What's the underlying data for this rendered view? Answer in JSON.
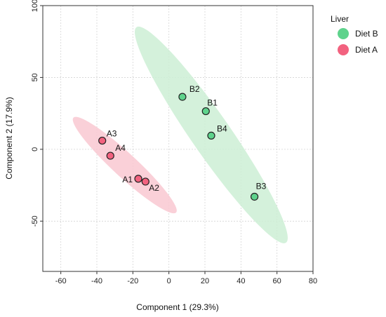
{
  "chart_data": {
    "type": "scatter",
    "title": "",
    "xlabel": "Component 1 (29.3%)",
    "ylabel": "Component 2 (17.9%)",
    "xlim": [
      -70,
      80
    ],
    "ylim": [
      -85,
      100
    ],
    "xticks": [
      -60,
      -40,
      -20,
      0,
      20,
      40,
      60,
      80
    ],
    "yticks": [
      -50,
      0,
      50,
      100
    ],
    "grid": true,
    "legend": {
      "title": "Liver",
      "placement": "right"
    },
    "series": [
      {
        "name": "Diet B",
        "color": "#5ed38c",
        "ellipse_color": "#cdeed5",
        "points": [
          {
            "label": "B1",
            "x": 20.5,
            "y": 26.5
          },
          {
            "label": "B2",
            "x": 7.5,
            "y": 36.5
          },
          {
            "label": "B3",
            "x": 47.5,
            "y": -33
          },
          {
            "label": "B4",
            "x": 23.5,
            "y": 9.5
          }
        ]
      },
      {
        "name": "Diet A",
        "color": "#f2627f",
        "ellipse_color": "#f9c8d1",
        "points": [
          {
            "label": "A1",
            "x": -17,
            "y": -20.5
          },
          {
            "label": "A2",
            "x": -13,
            "y": -22.5
          },
          {
            "label": "A3",
            "x": -37,
            "y": 6
          },
          {
            "label": "A4",
            "x": -32.5,
            "y": -4.5
          }
        ]
      }
    ],
    "ellipses": [
      {
        "series": "Diet B",
        "end1": {
          "x": -18,
          "y": 85
        },
        "end2": {
          "x": 65,
          "y": -65
        },
        "semi_minor_fraction": 0.075
      },
      {
        "series": "Diet A",
        "end1": {
          "x": -53,
          "y": 22
        },
        "end2": {
          "x": 4,
          "y": -44
        },
        "semi_minor_fraction": 0.085
      }
    ]
  }
}
